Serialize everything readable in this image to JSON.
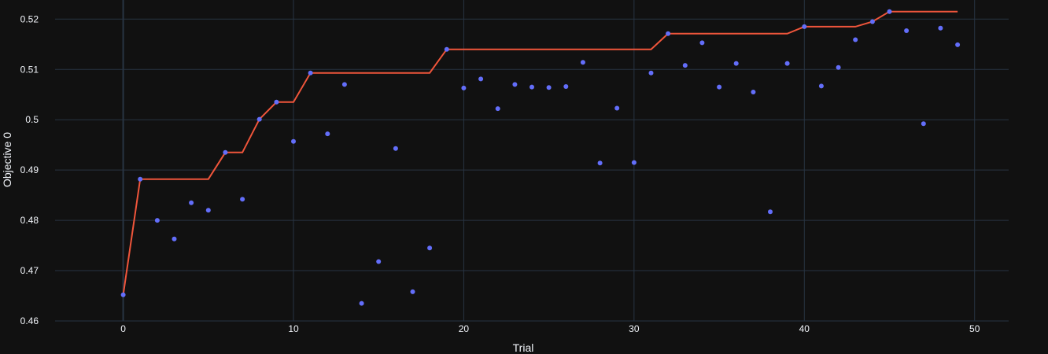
{
  "chart_data": {
    "type": "scatter",
    "xlabel": "Trial",
    "ylabel": "Objective 0",
    "xlim": [
      -4,
      52
    ],
    "ylim": [
      0.46,
      0.5238
    ],
    "x_ticks": [
      0,
      10,
      20,
      30,
      40,
      50
    ],
    "y_ticks": [
      0.46,
      0.47,
      0.48,
      0.49,
      0.5,
      0.51,
      0.52
    ],
    "y_tick_labels": [
      "0.46",
      "0.47",
      "0.48",
      "0.49",
      "0.5",
      "0.51",
      "0.52"
    ],
    "grid": true,
    "colors": {
      "background": "#111111",
      "grid": "#283442",
      "zeroline": "#283442",
      "points": "#636efa",
      "best_line": "#ef553b",
      "text": "#f2f5fa"
    },
    "series": [
      {
        "type": "scatter",
        "x": [
          0,
          1,
          2,
          3,
          4,
          5,
          6,
          7,
          8,
          9,
          10,
          11,
          12,
          13,
          14,
          15,
          16,
          17,
          18,
          19,
          20,
          21,
          22,
          23,
          24,
          25,
          26,
          27,
          28,
          29,
          30,
          31,
          32,
          33,
          34,
          35,
          36,
          37,
          38,
          39,
          40,
          41,
          42,
          43,
          44,
          45,
          46,
          47,
          48,
          49
        ],
        "y": [
          0.4652,
          0.4882,
          0.48,
          0.4763,
          0.4835,
          0.482,
          0.4935,
          0.4842,
          0.5001,
          0.5035,
          0.4957,
          0.5093,
          0.4972,
          0.507,
          0.4635,
          0.4718,
          0.4943,
          0.4658,
          0.4745,
          0.514,
          0.5063,
          0.5081,
          0.5022,
          0.507,
          0.5065,
          0.5064,
          0.5066,
          0.5114,
          0.4914,
          0.5023,
          0.4915,
          0.5093,
          0.5171,
          0.5108,
          0.5153,
          0.5065,
          0.5112,
          0.5055,
          0.4817,
          0.5112,
          0.5185,
          0.5067,
          0.5104,
          0.5159,
          0.5195,
          0.5215,
          0.5177,
          0.4992,
          0.5182,
          0.5149
        ]
      },
      {
        "type": "line",
        "x": [
          0,
          1,
          2,
          3,
          4,
          5,
          6,
          7,
          8,
          9,
          10,
          11,
          12,
          13,
          14,
          15,
          16,
          17,
          18,
          19,
          20,
          21,
          22,
          23,
          24,
          25,
          26,
          27,
          28,
          29,
          30,
          31,
          32,
          33,
          34,
          35,
          36,
          37,
          38,
          39,
          40,
          41,
          42,
          43,
          44,
          45,
          46,
          47,
          48,
          49
        ],
        "y": [
          0.4652,
          0.4882,
          0.4882,
          0.4882,
          0.4882,
          0.4882,
          0.4935,
          0.4935,
          0.5001,
          0.5035,
          0.5035,
          0.5093,
          0.5093,
          0.5093,
          0.5093,
          0.5093,
          0.5093,
          0.5093,
          0.5093,
          0.514,
          0.514,
          0.514,
          0.514,
          0.514,
          0.514,
          0.514,
          0.514,
          0.514,
          0.514,
          0.514,
          0.514,
          0.514,
          0.5171,
          0.5171,
          0.5171,
          0.5171,
          0.5171,
          0.5171,
          0.5171,
          0.5171,
          0.5185,
          0.5185,
          0.5185,
          0.5185,
          0.5195,
          0.5215,
          0.5215,
          0.5215,
          0.5215,
          0.5215
        ]
      }
    ]
  }
}
